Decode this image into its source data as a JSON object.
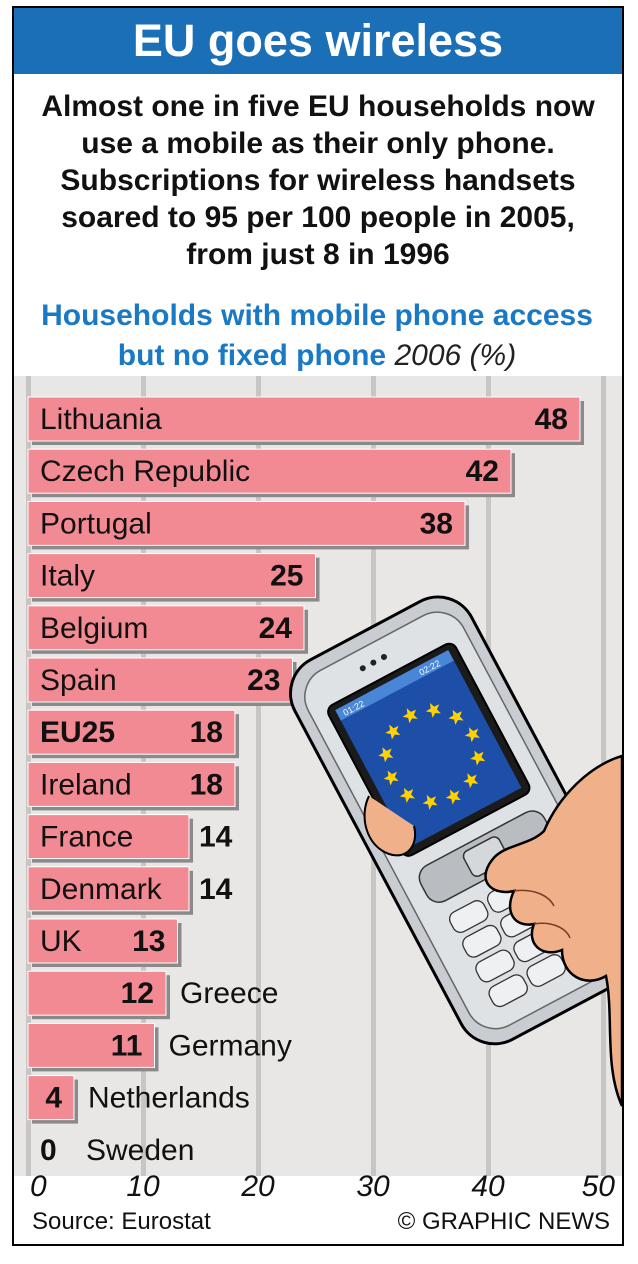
{
  "header": {
    "title": "EU goes wireless",
    "intro": "Almost one in five EU households now use a mobile as their only phone. Subscriptions for wireless handsets soared to 95 per 100 people in 2005, from just 8 in 1996"
  },
  "chart_data": {
    "type": "bar",
    "orientation": "horizontal",
    "title": "Households with mobile phone access but no fixed phone",
    "unit_label": "2006 (%)",
    "categories": [
      "Lithuania",
      "Czech Republic",
      "Portugal",
      "Italy",
      "Belgium",
      "Spain",
      "EU25",
      "Ireland",
      "France",
      "Denmark",
      "UK",
      "Greece",
      "Germany",
      "Netherlands",
      "Sweden"
    ],
    "values": [
      48,
      42,
      38,
      25,
      24,
      23,
      18,
      18,
      14,
      14,
      13,
      12,
      11,
      4,
      0
    ],
    "highlight": [
      "EU25"
    ],
    "xlim": [
      0,
      50
    ],
    "xticks": [
      0,
      10,
      20,
      30,
      40,
      50
    ],
    "xtick_labels": [
      "0",
      "10",
      "20",
      "30",
      "40",
      "50"
    ],
    "grid": true,
    "bar_color": "#f28a94"
  },
  "footer": {
    "source": "Source: Eurostat",
    "credit": "© GRAPHIC NEWS"
  },
  "illustration": {
    "icon": "mobile-phone-in-hand-icon",
    "screen_time": "02:22",
    "screen_time_left": "01:22"
  },
  "colors": {
    "title_bar": "#1a6fb7",
    "subtitle_text": "#1a79c5",
    "chart_background": "#e9e7e6",
    "gridline": "#c8c6c4"
  }
}
